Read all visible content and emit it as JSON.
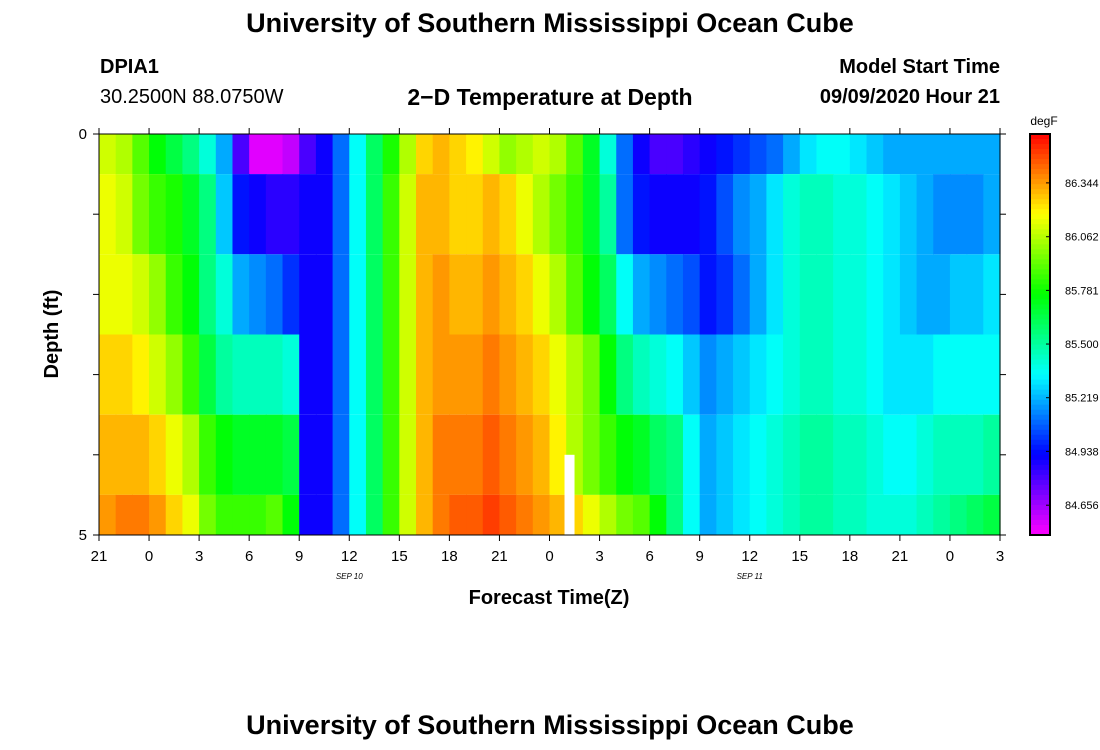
{
  "page": {
    "title_top": "University of Southern Mississippi Ocean Cube",
    "title_bottom": "University of Southern Mississippi Ocean Cube",
    "station_id": "DPIA1",
    "location": "30.2500N 88.0750W",
    "plot_title": "2−D Temperature at Depth",
    "model_label": "Model Start Time",
    "model_time": "09/09/2020 Hour 21"
  },
  "chart_data": {
    "type": "heatmap",
    "title": "2−D Temperature at Depth",
    "xlabel": "Forecast Time(Z)",
    "ylabel": "Depth (ft)",
    "x_ticks": [
      "21",
      "0",
      "3",
      "6",
      "9",
      "12",
      "15",
      "18",
      "21",
      "0",
      "3",
      "6",
      "9",
      "12",
      "15",
      "18",
      "21",
      "0",
      "3"
    ],
    "x_hours_range": [
      0,
      54
    ],
    "date_labels": [
      {
        "text": "SEP 10",
        "hour": 15
      },
      {
        "text": "SEP 11",
        "hour": 39
      }
    ],
    "y_ticks": [
      "0",
      "",
      "",
      "",
      "",
      "5"
    ],
    "ylim": [
      0,
      5
    ],
    "colorbar": {
      "unit": "degF",
      "labels": [
        "86.344",
        "86.062",
        "85.781",
        "85.500",
        "85.219",
        "84.938",
        "84.656"
      ],
      "range": [
        84.5,
        86.6
      ]
    },
    "series": [
      {
        "name": "row-1",
        "depth_top": 0.0,
        "depth_bottom": 0.5,
        "values": [
          86.1,
          86.05,
          85.9,
          85.75,
          85.65,
          85.55,
          85.4,
          85.2,
          84.8,
          84.55,
          84.55,
          84.6,
          84.8,
          84.9,
          85.1,
          85.35,
          85.6,
          85.8,
          86.05,
          86.25,
          86.3,
          86.25,
          86.2,
          86.1,
          86.0,
          86.05,
          86.1,
          86.05,
          85.9,
          85.7,
          85.4,
          85.1,
          84.9,
          84.8,
          84.8,
          84.85,
          84.9,
          84.95,
          85.0,
          85.05,
          85.1,
          85.2,
          85.3,
          85.35,
          85.35,
          85.3,
          85.25,
          85.2,
          85.2,
          85.2,
          85.2,
          85.2,
          85.2,
          85.2
        ]
      },
      {
        "name": "row-2",
        "depth_top": 0.5,
        "depth_bottom": 1.5,
        "values": [
          86.15,
          86.1,
          85.95,
          85.85,
          85.8,
          85.7,
          85.55,
          85.25,
          84.95,
          84.9,
          84.85,
          84.85,
          84.9,
          84.9,
          85.1,
          85.35,
          85.6,
          85.85,
          86.1,
          86.3,
          86.3,
          86.25,
          86.25,
          86.3,
          86.25,
          86.15,
          86.05,
          85.95,
          85.85,
          85.7,
          85.5,
          85.1,
          84.95,
          84.9,
          84.9,
          84.9,
          84.95,
          85.05,
          85.15,
          85.2,
          85.3,
          85.4,
          85.45,
          85.45,
          85.4,
          85.4,
          85.35,
          85.3,
          85.25,
          85.2,
          85.15,
          85.15,
          85.15,
          85.2
        ]
      },
      {
        "name": "row-3",
        "depth_top": 1.5,
        "depth_bottom": 2.5,
        "values": [
          86.15,
          86.15,
          86.1,
          86.0,
          85.85,
          85.75,
          85.55,
          85.4,
          85.2,
          85.15,
          85.1,
          85.0,
          84.9,
          84.9,
          85.1,
          85.35,
          85.6,
          85.85,
          86.1,
          86.3,
          86.35,
          86.3,
          86.3,
          86.35,
          86.3,
          86.25,
          86.15,
          86.05,
          85.9,
          85.75,
          85.6,
          85.35,
          85.2,
          85.15,
          85.1,
          85.05,
          84.95,
          85.0,
          85.1,
          85.2,
          85.3,
          85.4,
          85.45,
          85.45,
          85.4,
          85.4,
          85.35,
          85.3,
          85.25,
          85.2,
          85.2,
          85.25,
          85.25,
          85.3
        ]
      },
      {
        "name": "row-4",
        "depth_top": 2.5,
        "depth_bottom": 3.5,
        "values": [
          86.25,
          86.25,
          86.2,
          86.1,
          86.0,
          85.85,
          85.65,
          85.5,
          85.45,
          85.45,
          85.45,
          85.4,
          84.9,
          84.9,
          85.1,
          85.35,
          85.6,
          85.85,
          86.1,
          86.3,
          86.35,
          86.35,
          86.35,
          86.4,
          86.35,
          86.3,
          86.25,
          86.15,
          86.05,
          85.95,
          85.75,
          85.55,
          85.45,
          85.4,
          85.35,
          85.25,
          85.15,
          85.2,
          85.25,
          85.3,
          85.35,
          85.4,
          85.45,
          85.45,
          85.4,
          85.4,
          85.35,
          85.3,
          85.3,
          85.3,
          85.35,
          85.35,
          85.35,
          85.35
        ]
      },
      {
        "name": "row-5",
        "depth_top": 3.5,
        "depth_bottom": 4.5,
        "values": [
          86.3,
          86.3,
          86.3,
          86.25,
          86.15,
          86.05,
          85.85,
          85.75,
          85.7,
          85.7,
          85.7,
          85.65,
          84.9,
          84.9,
          85.1,
          85.35,
          85.6,
          85.85,
          86.1,
          86.3,
          86.4,
          86.4,
          86.4,
          86.45,
          86.4,
          86.35,
          86.3,
          86.2,
          86.05,
          85.95,
          85.85,
          85.75,
          85.7,
          85.6,
          85.55,
          85.35,
          85.2,
          85.25,
          85.3,
          85.35,
          85.4,
          85.45,
          85.5,
          85.5,
          85.45,
          85.45,
          85.4,
          85.35,
          85.35,
          85.4,
          85.45,
          85.45,
          85.45,
          85.5
        ]
      },
      {
        "name": "row-6",
        "depth_top": 4.5,
        "depth_bottom": 5.0,
        "values": [
          86.35,
          86.4,
          86.4,
          86.35,
          86.25,
          86.15,
          85.95,
          85.85,
          85.85,
          85.85,
          85.9,
          85.75,
          84.9,
          84.9,
          85.1,
          85.35,
          85.6,
          85.85,
          86.1,
          86.3,
          86.4,
          86.45,
          86.45,
          86.5,
          86.45,
          86.4,
          86.35,
          86.3,
          86.25,
          86.15,
          86.05,
          85.95,
          85.9,
          85.75,
          85.55,
          85.35,
          85.2,
          85.25,
          85.3,
          85.35,
          85.4,
          85.45,
          85.5,
          85.5,
          85.45,
          85.45,
          85.4,
          85.4,
          85.4,
          85.45,
          85.5,
          85.55,
          85.6,
          85.65
        ]
      }
    ],
    "gap": {
      "hour_start": 27.9,
      "hour_end": 28.5,
      "depth_top": 4.0,
      "depth_bottom": 5.0
    }
  }
}
